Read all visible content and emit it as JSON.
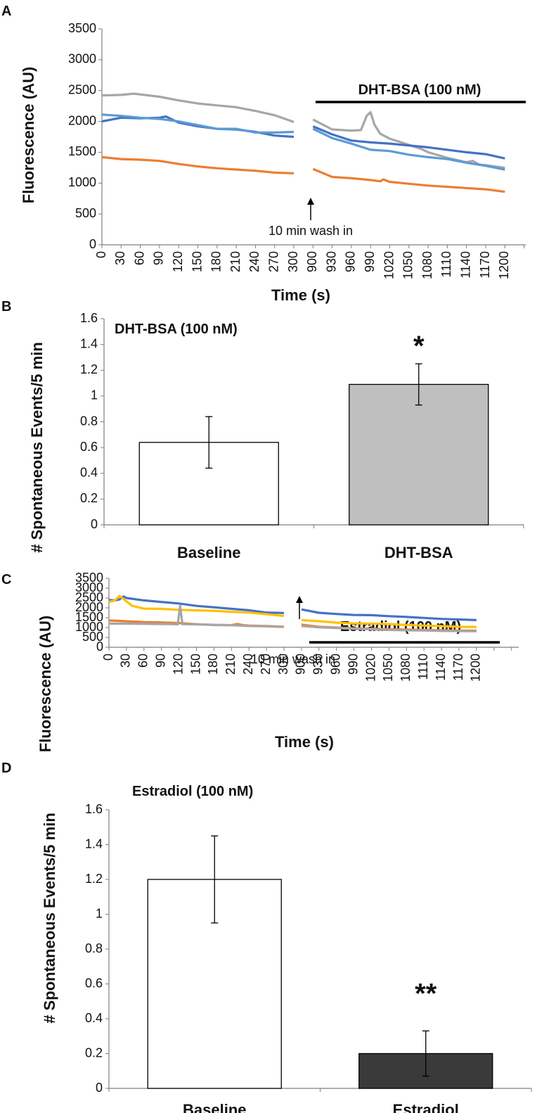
{
  "chart_data": [
    {
      "panel": "A",
      "type": "line",
      "ylabel": "Fluorescence (AU)",
      "xlabel": "Time (s)",
      "ylim": [
        0,
        3500
      ],
      "yticks": [
        0,
        500,
        1000,
        1500,
        2000,
        2500,
        3000,
        3500
      ],
      "xticks_before": [
        0,
        30,
        60,
        90,
        120,
        150,
        180,
        210,
        240,
        270,
        300
      ],
      "xticks_after": [
        900,
        930,
        960,
        990,
        1020,
        1050,
        1080,
        1110,
        1140,
        1170,
        1200
      ],
      "treatment_label": "DHT-BSA (100 nM)",
      "wash_label": "10 min wash in",
      "series": [
        {
          "name": "gray",
          "color": "#a6a6a6",
          "before": [
            [
              0,
              2420
            ],
            [
              30,
              2430
            ],
            [
              50,
              2450
            ],
            [
              90,
              2400
            ],
            [
              120,
              2340
            ],
            [
              150,
              2290
            ],
            [
              180,
              2260
            ],
            [
              210,
              2230
            ],
            [
              240,
              2170
            ],
            [
              270,
              2100
            ],
            [
              300,
              1990
            ]
          ],
          "after": [
            [
              900,
              2030
            ],
            [
              930,
              1870
            ],
            [
              960,
              1850
            ],
            [
              975,
              1860
            ],
            [
              984,
              2090
            ],
            [
              990,
              2150
            ],
            [
              996,
              1950
            ],
            [
              1005,
              1800
            ],
            [
              1020,
              1720
            ],
            [
              1050,
              1620
            ],
            [
              1070,
              1550
            ],
            [
              1080,
              1500
            ],
            [
              1110,
              1410
            ],
            [
              1140,
              1340
            ],
            [
              1150,
              1360
            ],
            [
              1160,
              1300
            ],
            [
              1170,
              1290
            ],
            [
              1200,
              1250
            ]
          ]
        },
        {
          "name": "blue",
          "color": "#4472c4",
          "before": [
            [
              0,
              2000
            ],
            [
              30,
              2060
            ],
            [
              60,
              2050
            ],
            [
              90,
              2060
            ],
            [
              100,
              2080
            ],
            [
              120,
              1980
            ],
            [
              150,
              1920
            ],
            [
              180,
              1880
            ],
            [
              210,
              1870
            ],
            [
              240,
              1830
            ],
            [
              270,
              1770
            ],
            [
              300,
              1750
            ]
          ],
          "after": [
            [
              900,
              1920
            ],
            [
              930,
              1790
            ],
            [
              960,
              1690
            ],
            [
              990,
              1660
            ],
            [
              1020,
              1640
            ],
            [
              1050,
              1610
            ],
            [
              1080,
              1580
            ],
            [
              1110,
              1540
            ],
            [
              1140,
              1500
            ],
            [
              1170,
              1470
            ],
            [
              1200,
              1400
            ]
          ]
        },
        {
          "name": "lightblue",
          "color": "#5b9bd5",
          "before": [
            [
              0,
              2110
            ],
            [
              30,
              2090
            ],
            [
              60,
              2060
            ],
            [
              90,
              2040
            ],
            [
              120,
              2000
            ],
            [
              150,
              1940
            ],
            [
              180,
              1880
            ],
            [
              210,
              1880
            ],
            [
              240,
              1820
            ],
            [
              270,
              1820
            ],
            [
              300,
              1830
            ]
          ],
          "after": [
            [
              900,
              1880
            ],
            [
              930,
              1730
            ],
            [
              960,
              1640
            ],
            [
              990,
              1540
            ],
            [
              1020,
              1520
            ],
            [
              1050,
              1460
            ],
            [
              1080,
              1420
            ],
            [
              1110,
              1390
            ],
            [
              1140,
              1330
            ],
            [
              1170,
              1280
            ],
            [
              1200,
              1220
            ]
          ]
        },
        {
          "name": "orange",
          "color": "#ed7d31",
          "before": [
            [
              0,
              1420
            ],
            [
              30,
              1390
            ],
            [
              60,
              1380
            ],
            [
              90,
              1360
            ],
            [
              120,
              1310
            ],
            [
              150,
              1270
            ],
            [
              180,
              1240
            ],
            [
              210,
              1220
            ],
            [
              240,
              1200
            ],
            [
              270,
              1170
            ],
            [
              300,
              1160
            ]
          ],
          "after": [
            [
              900,
              1230
            ],
            [
              930,
              1100
            ],
            [
              960,
              1080
            ],
            [
              990,
              1050
            ],
            [
              1005,
              1030
            ],
            [
              1010,
              1060
            ],
            [
              1020,
              1020
            ],
            [
              1050,
              990
            ],
            [
              1080,
              960
            ],
            [
              1110,
              940
            ],
            [
              1140,
              920
            ],
            [
              1170,
              900
            ],
            [
              1200,
              860
            ]
          ]
        }
      ]
    },
    {
      "panel": "B",
      "type": "bar",
      "title": "DHT-BSA (100 nM)",
      "ylabel": "# Spontaneous Events/5 min",
      "ylim": [
        0,
        1.6
      ],
      "yticks": [
        "0",
        "0.2",
        "0.4",
        "0.6",
        "0.8",
        "1",
        "1.2",
        "1.4",
        "1.6"
      ],
      "categories": [
        "Baseline",
        "DHT-BSA"
      ],
      "values": [
        0.64,
        1.09
      ],
      "errors": [
        0.2,
        0.16
      ],
      "bar_colors": [
        "#ffffff",
        "#bfbfbf"
      ],
      "significance": [
        "",
        "*"
      ]
    },
    {
      "panel": "C",
      "type": "line",
      "ylabel": "Fluorescence (AU)",
      "xlabel": "Time (s)",
      "ylim": [
        0,
        3500
      ],
      "yticks": [
        0,
        500,
        1000,
        1500,
        2000,
        2500,
        3000,
        3500
      ],
      "xticks_before": [
        0,
        30,
        60,
        90,
        120,
        150,
        180,
        210,
        240,
        270,
        300
      ],
      "xticks_after": [
        900,
        930,
        960,
        990,
        1020,
        1050,
        1080,
        1110,
        1140,
        1170,
        1200
      ],
      "treatment_label": "Estradiol (100 nM)",
      "wash_label": "10 min wash in",
      "series": [
        {
          "name": "blue",
          "color": "#4472c4",
          "before": [
            [
              0,
              2400
            ],
            [
              10,
              2380
            ],
            [
              18,
              2430
            ],
            [
              25,
              2580
            ],
            [
              30,
              2500
            ],
            [
              60,
              2380
            ],
            [
              90,
              2300
            ],
            [
              120,
              2220
            ],
            [
              150,
              2100
            ],
            [
              180,
              2030
            ],
            [
              210,
              1950
            ],
            [
              240,
              1880
            ],
            [
              270,
              1760
            ],
            [
              300,
              1740
            ]
          ],
          "after": [
            [
              900,
              1920
            ],
            [
              930,
              1750
            ],
            [
              960,
              1690
            ],
            [
              990,
              1640
            ],
            [
              1020,
              1630
            ],
            [
              1050,
              1580
            ],
            [
              1080,
              1540
            ],
            [
              1110,
              1490
            ],
            [
              1140,
              1440
            ],
            [
              1170,
              1410
            ],
            [
              1200,
              1380
            ]
          ]
        },
        {
          "name": "yellow",
          "color": "#ffc000",
          "before": [
            [
              0,
              2300
            ],
            [
              10,
              2380
            ],
            [
              18,
              2600
            ],
            [
              25,
              2450
            ],
            [
              40,
              2100
            ],
            [
              60,
              1960
            ],
            [
              90,
              1950
            ],
            [
              120,
              1900
            ],
            [
              150,
              1870
            ],
            [
              180,
              1850
            ],
            [
              210,
              1800
            ],
            [
              240,
              1760
            ],
            [
              270,
              1680
            ],
            [
              300,
              1590
            ]
          ],
          "after": [
            [
              900,
              1380
            ],
            [
              930,
              1320
            ],
            [
              960,
              1250
            ],
            [
              990,
              1210
            ],
            [
              1020,
              1200
            ],
            [
              1050,
              1180
            ],
            [
              1080,
              1130
            ],
            [
              1110,
              1100
            ],
            [
              1140,
              1070
            ],
            [
              1170,
              1040
            ],
            [
              1200,
              1030
            ]
          ]
        },
        {
          "name": "orange",
          "color": "#ed7d31",
          "before": [
            [
              0,
              1360
            ],
            [
              30,
              1320
            ],
            [
              60,
              1280
            ],
            [
              90,
              1260
            ],
            [
              120,
              1230
            ],
            [
              150,
              1170
            ],
            [
              180,
              1130
            ],
            [
              210,
              1120
            ],
            [
              220,
              1180
            ],
            [
              230,
              1120
            ],
            [
              240,
              1100
            ],
            [
              270,
              1080
            ],
            [
              300,
              1040
            ]
          ],
          "after": [
            [
              900,
              1150
            ],
            [
              930,
              1040
            ],
            [
              960,
              1000
            ],
            [
              990,
              960
            ],
            [
              1020,
              940
            ],
            [
              1050,
              920
            ],
            [
              1080,
              900
            ],
            [
              1110,
              880
            ],
            [
              1140,
              860
            ],
            [
              1170,
              850
            ],
            [
              1200,
              840
            ]
          ]
        },
        {
          "name": "gray",
          "color": "#a6a6a6",
          "before": [
            [
              0,
              1200
            ],
            [
              30,
              1200
            ],
            [
              60,
              1190
            ],
            [
              90,
              1180
            ],
            [
              110,
              1170
            ],
            [
              118,
              1160
            ],
            [
              122,
              2100
            ],
            [
              126,
              1170
            ],
            [
              150,
              1160
            ],
            [
              180,
              1140
            ],
            [
              210,
              1120
            ],
            [
              240,
              1080
            ],
            [
              270,
              1060
            ],
            [
              300,
              1030
            ]
          ],
          "after": [
            [
              900,
              1080
            ],
            [
              930,
              1010
            ],
            [
              960,
              980
            ],
            [
              990,
              940
            ],
            [
              1020,
              910
            ],
            [
              1050,
              880
            ],
            [
              1080,
              860
            ],
            [
              1110,
              850
            ],
            [
              1140,
              830
            ],
            [
              1170,
              820
            ],
            [
              1200,
              810
            ]
          ]
        }
      ]
    },
    {
      "panel": "D",
      "type": "bar",
      "title": "Estradiol (100 nM)",
      "ylabel": "# Spontaneous Events/5 min",
      "ylim": [
        0,
        1.6
      ],
      "yticks": [
        "0",
        "0.2",
        "0.4",
        "0.6",
        "0.8",
        "1",
        "1.2",
        "1.4",
        "1.6"
      ],
      "categories": [
        "Baseline",
        "Estradiol"
      ],
      "values": [
        1.2,
        0.2
      ],
      "errors": [
        0.25,
        0.13
      ],
      "bar_colors": [
        "#ffffff",
        "#3a3a3a"
      ],
      "significance": [
        "",
        "**"
      ]
    }
  ]
}
